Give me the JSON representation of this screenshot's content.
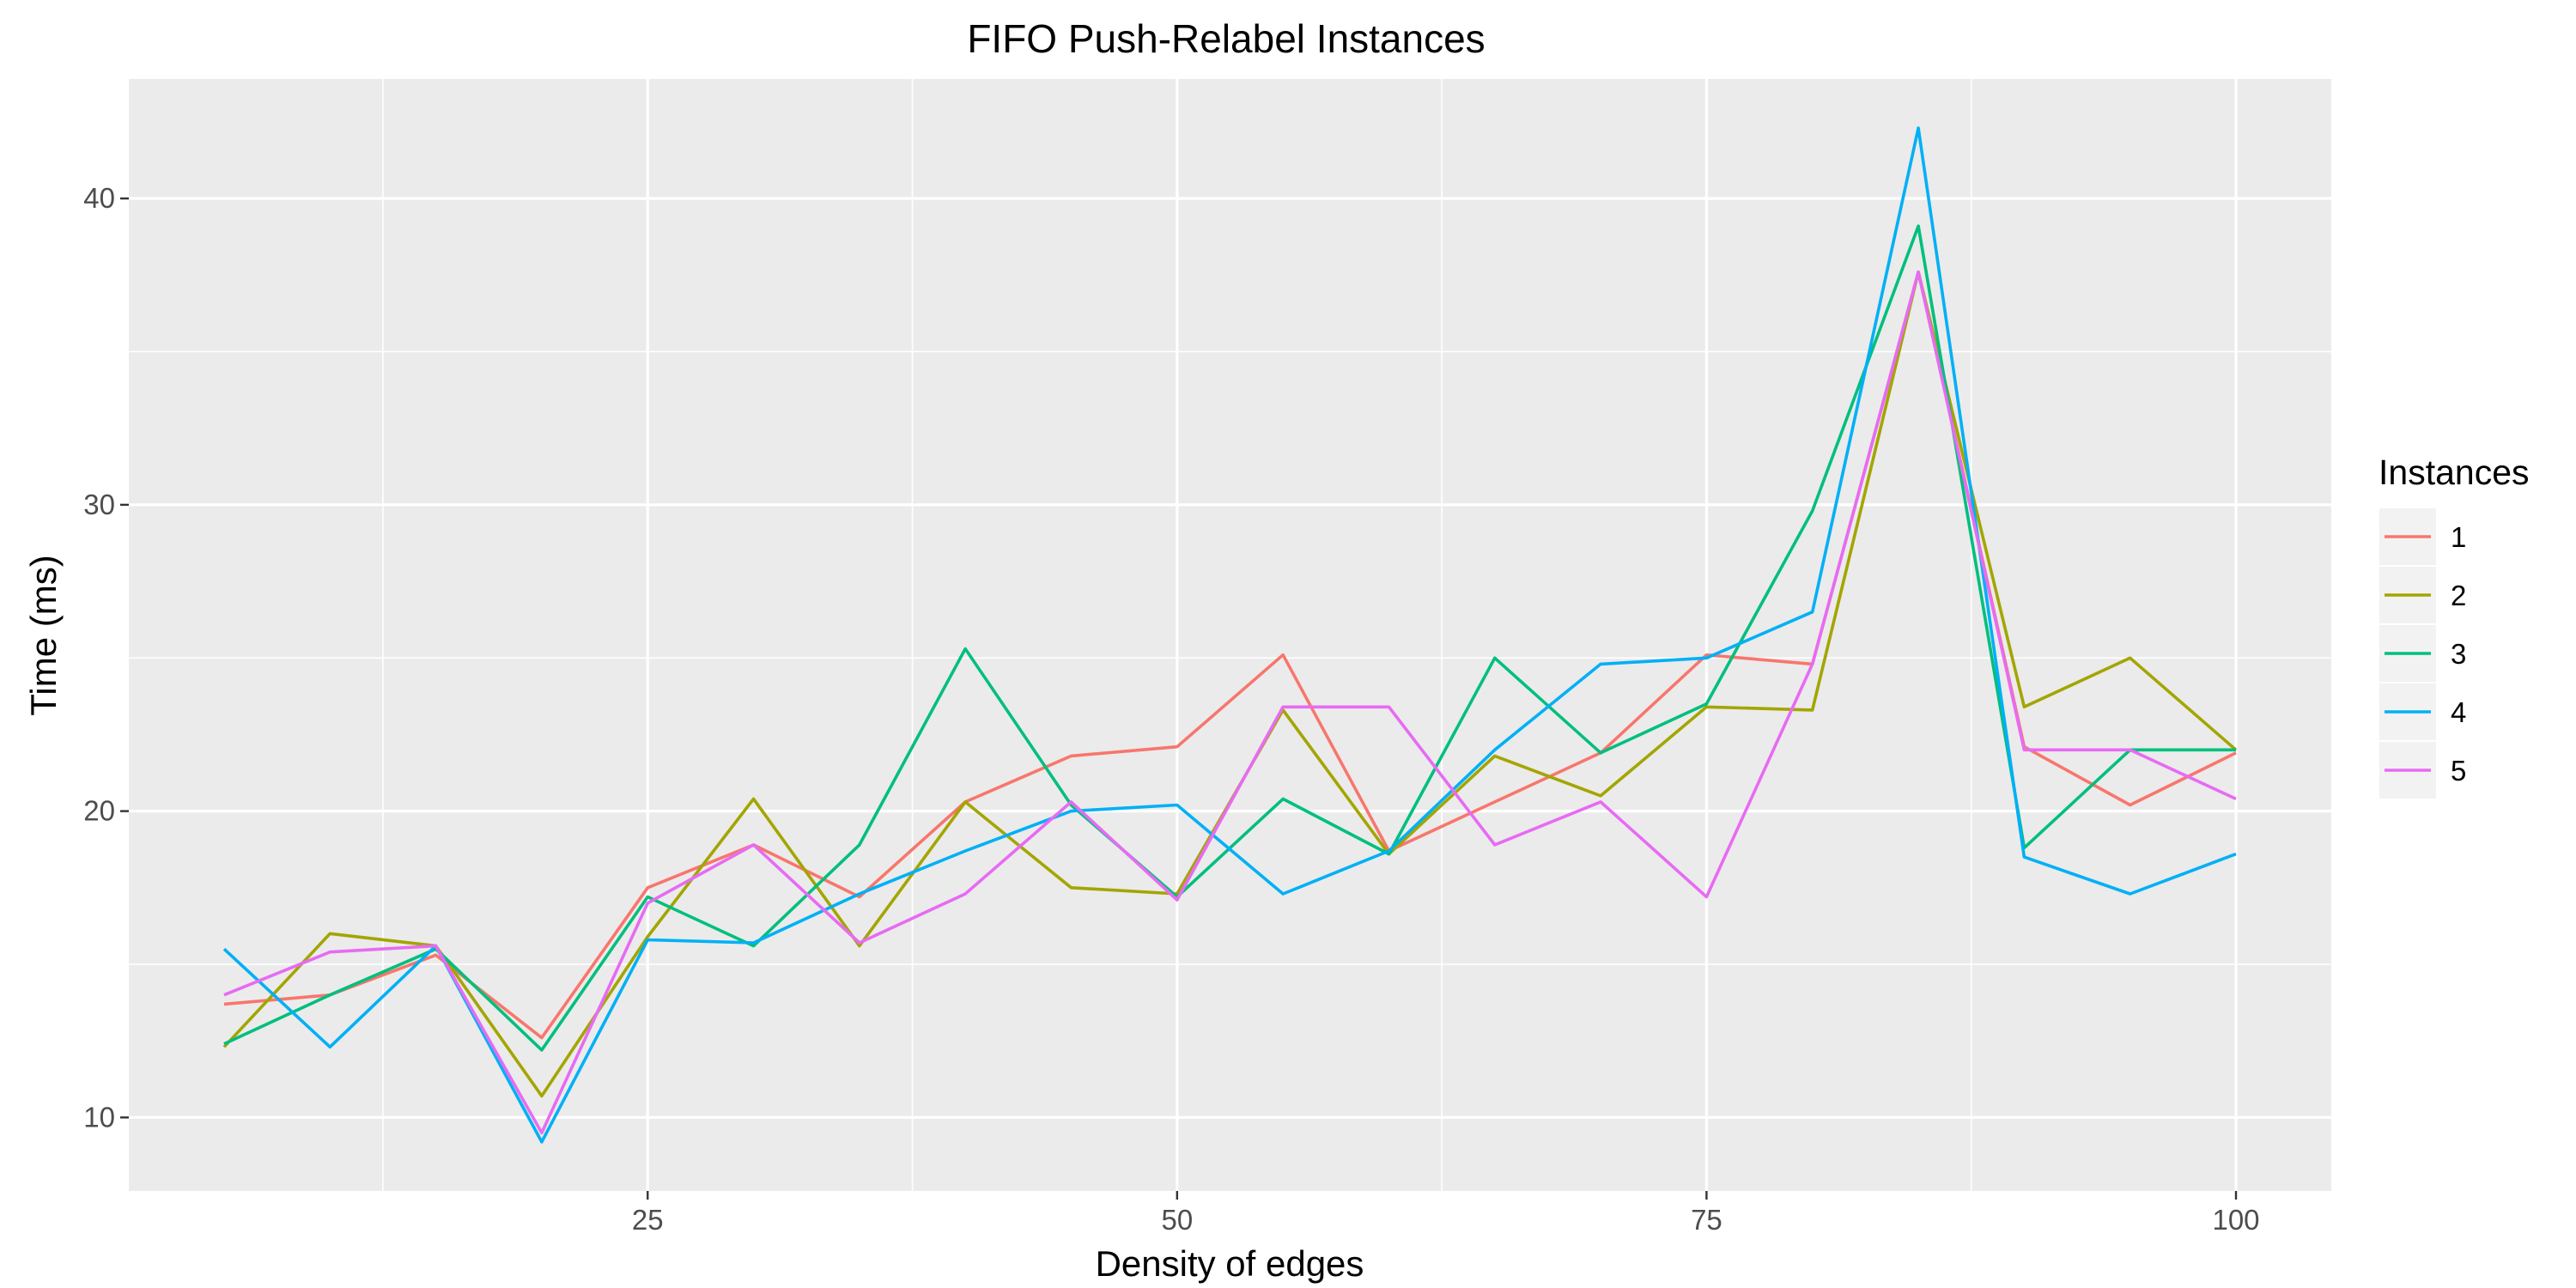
{
  "chart_data": {
    "type": "line",
    "title": "FIFO Push-Relabel Instances",
    "xlabel": "Density of edges",
    "ylabel": "Time (ms)",
    "xlim": [
      0.5,
      104.5
    ],
    "ylim": [
      7.6,
      43.9
    ],
    "x_ticks": [
      25,
      50,
      75,
      100
    ],
    "y_ticks": [
      10,
      20,
      30,
      40
    ],
    "grid": true,
    "legend": {
      "title": "Instances",
      "position": "right"
    },
    "x": [
      5,
      10,
      15,
      20,
      25,
      30,
      35,
      40,
      45,
      50,
      55,
      60,
      65,
      70,
      75,
      80,
      85,
      90,
      95,
      100
    ],
    "series": [
      {
        "name": "1",
        "color": "#F8766D",
        "values": [
          13.7,
          14.0,
          15.3,
          12.6,
          17.5,
          18.9,
          17.2,
          20.3,
          21.8,
          22.1,
          25.1,
          18.7,
          20.3,
          21.9,
          25.1,
          24.8,
          37.6,
          22.1,
          20.2,
          21.9
        ]
      },
      {
        "name": "2",
        "color": "#A3A500",
        "values": [
          12.3,
          16.0,
          15.6,
          10.7,
          15.9,
          20.4,
          15.6,
          20.3,
          17.5,
          17.3,
          23.3,
          18.6,
          21.8,
          20.5,
          23.4,
          23.3,
          37.6,
          23.4,
          25.0,
          22.0
        ]
      },
      {
        "name": "3",
        "color": "#00BF7D",
        "values": [
          12.4,
          14.0,
          15.5,
          12.2,
          17.2,
          15.6,
          18.9,
          25.3,
          20.2,
          17.2,
          20.4,
          18.6,
          25.0,
          21.9,
          23.5,
          29.8,
          39.1,
          18.8,
          22.0,
          22.0
        ]
      },
      {
        "name": "4",
        "color": "#00B0F6",
        "values": [
          15.5,
          12.3,
          15.6,
          9.2,
          15.8,
          15.7,
          17.3,
          18.7,
          20.0,
          20.2,
          17.3,
          18.7,
          22.0,
          24.8,
          25.0,
          26.5,
          42.3,
          18.5,
          17.3,
          18.6
        ]
      },
      {
        "name": "5",
        "color": "#E76BF3",
        "values": [
          14.0,
          15.4,
          15.6,
          9.5,
          17.0,
          18.9,
          15.7,
          17.3,
          20.3,
          17.1,
          23.4,
          23.4,
          18.9,
          20.3,
          17.2,
          24.8,
          37.6,
          22.0,
          22.0,
          20.4
        ]
      }
    ]
  }
}
